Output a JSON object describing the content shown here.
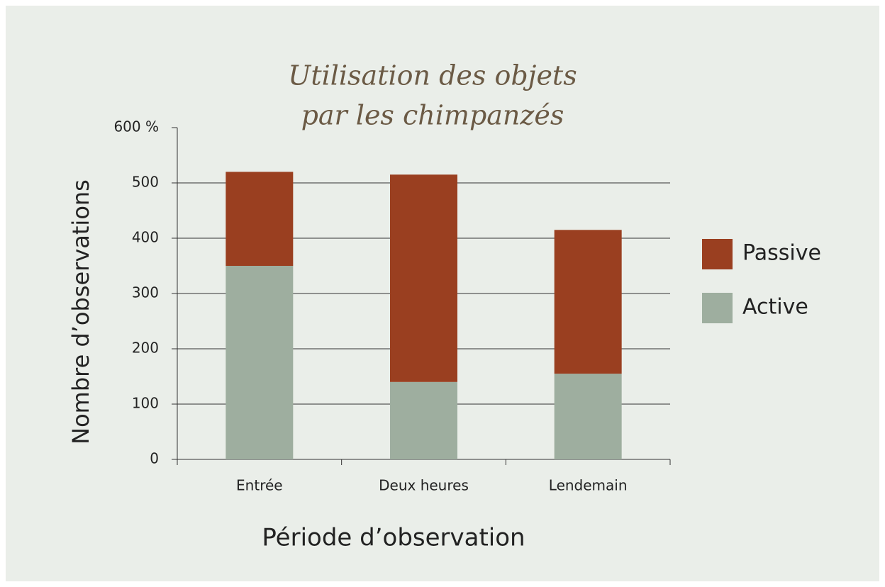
{
  "chart_data": {
    "type": "stacked_bar",
    "title": [
      "Utilisation des objets",
      "par les chimpanzés"
    ],
    "x_label": "Période d’observation",
    "y_label": "Nombre d’observations",
    "categories": [
      "Entrée",
      "Deux heures",
      "Lendemain"
    ],
    "series": [
      {
        "name": "Active",
        "color": "#9eae9f",
        "values": [
          350,
          140,
          155
        ]
      },
      {
        "name": "Passive",
        "color": "#9a3f20",
        "values": [
          170,
          375,
          260
        ]
      }
    ],
    "ylim": [
      0,
      600
    ],
    "yticks": [
      0,
      100,
      200,
      300,
      400,
      500,
      {
        "value": 600,
        "label": "600 %"
      }
    ],
    "grid": true,
    "legend": "right"
  }
}
